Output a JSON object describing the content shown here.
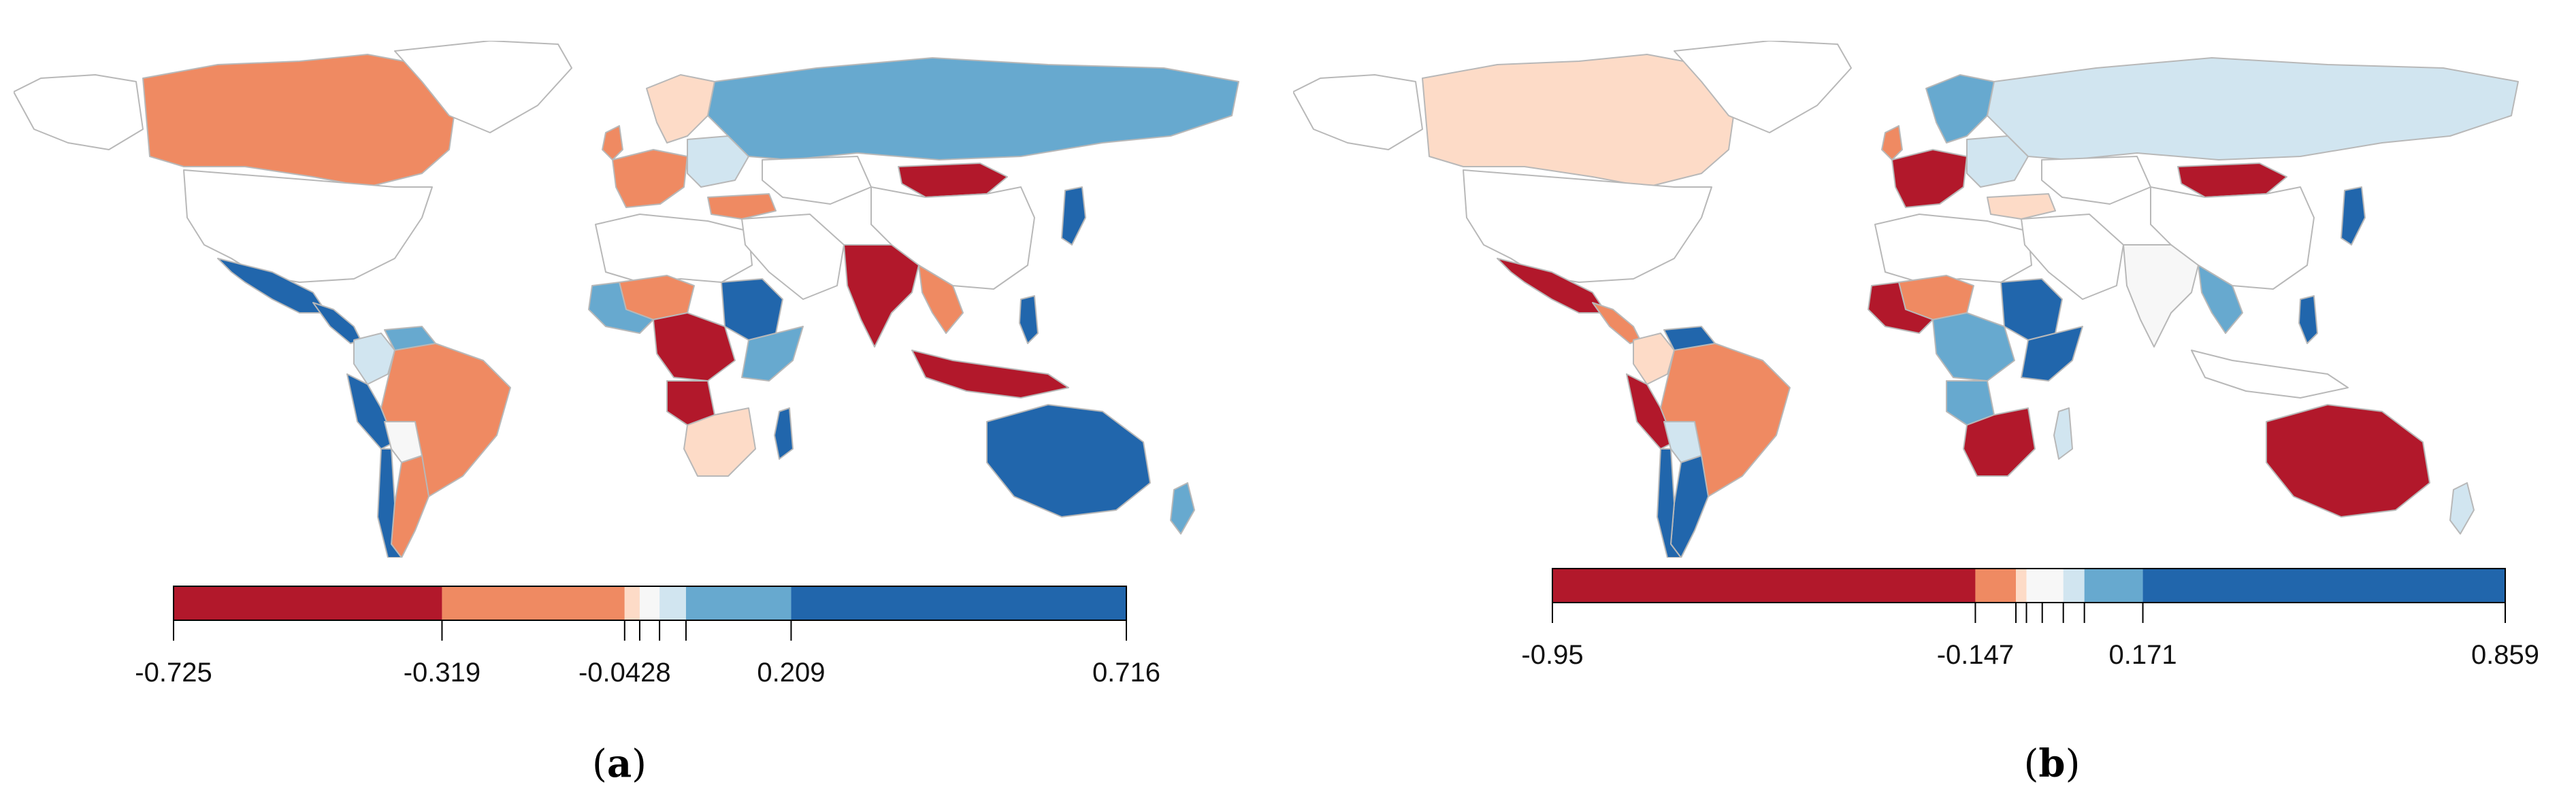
{
  "palette": {
    "dark_red": "#b2182b",
    "orange": "#ef8a62",
    "light_orange": "#fddbc7",
    "neutral": "#f7f7f7",
    "light_blue": "#d1e5f0",
    "mid_blue": "#67a9cf",
    "dark_blue": "#2166ac",
    "no_data": "#ffffff"
  },
  "panels": [
    {
      "id": "a",
      "caption_open": "(",
      "caption_letter": "a",
      "caption_close": ")",
      "colorbar": {
        "min": -0.725,
        "max": 0.716,
        "breaks": [
          -0.725,
          -0.319,
          -0.0428,
          -0.02,
          0.01,
          0.05,
          0.209,
          0.716
        ],
        "colors": [
          "#b2182b",
          "#ef8a62",
          "#fddbc7",
          "#f7f7f7",
          "#d1e5f0",
          "#67a9cf",
          "#2166ac"
        ],
        "labels": [
          {
            "value": -0.725,
            "text": "-0.725"
          },
          {
            "value": -0.319,
            "text": "-0.319"
          },
          {
            "value": -0.0428,
            "text": "-0.0428"
          },
          {
            "value": 0.209,
            "text": "0.209"
          },
          {
            "value": 0.716,
            "text": "0.716"
          }
        ]
      },
      "regions": [
        {
          "name": "canada",
          "color": "#ef8a62"
        },
        {
          "name": "usa",
          "color": "#ffffff"
        },
        {
          "name": "alaska",
          "color": "#ffffff"
        },
        {
          "name": "greenland",
          "color": "#ffffff"
        },
        {
          "name": "mexico",
          "color": "#2166ac"
        },
        {
          "name": "central-america",
          "color": "#2166ac"
        },
        {
          "name": "colombia",
          "color": "#d1e5f0"
        },
        {
          "name": "venezuela",
          "color": "#67a9cf"
        },
        {
          "name": "peru",
          "color": "#2166ac"
        },
        {
          "name": "brazil",
          "color": "#ef8a62"
        },
        {
          "name": "bolivia",
          "color": "#f7f7f7"
        },
        {
          "name": "argentina",
          "color": "#ef8a62"
        },
        {
          "name": "chile",
          "color": "#2166ac"
        },
        {
          "name": "scandinavia",
          "color": "#fddbc7"
        },
        {
          "name": "uk",
          "color": "#ef8a62"
        },
        {
          "name": "western-europe",
          "color": "#ef8a62"
        },
        {
          "name": "eastern-europe",
          "color": "#d1e5f0"
        },
        {
          "name": "turkey",
          "color": "#ef8a62"
        },
        {
          "name": "russia",
          "color": "#67a9cf"
        },
        {
          "name": "kazakhstan",
          "color": "#ffffff"
        },
        {
          "name": "mongolia",
          "color": "#b2182b"
        },
        {
          "name": "china",
          "color": "#ffffff"
        },
        {
          "name": "japan",
          "color": "#2166ac"
        },
        {
          "name": "india",
          "color": "#b2182b"
        },
        {
          "name": "southeast-asia",
          "color": "#ef8a62"
        },
        {
          "name": "indonesia",
          "color": "#b2182b"
        },
        {
          "name": "philippines",
          "color": "#2166ac"
        },
        {
          "name": "australia",
          "color": "#2166ac"
        },
        {
          "name": "new-zealand",
          "color": "#67a9cf"
        },
        {
          "name": "north-africa",
          "color": "#ffffff"
        },
        {
          "name": "mali",
          "color": "#ef8a62"
        },
        {
          "name": "west-africa",
          "color": "#67a9cf"
        },
        {
          "name": "sudan",
          "color": "#2166ac"
        },
        {
          "name": "central-africa",
          "color": "#b2182b"
        },
        {
          "name": "east-africa",
          "color": "#67a9cf"
        },
        {
          "name": "angola",
          "color": "#b2182b"
        },
        {
          "name": "southern-africa",
          "color": "#fddbc7"
        },
        {
          "name": "madagascar",
          "color": "#2166ac"
        },
        {
          "name": "middle-east",
          "color": "#ffffff"
        }
      ]
    },
    {
      "id": "b",
      "caption_open": "(",
      "caption_letter": "b",
      "caption_close": ")",
      "colorbar": {
        "min": -0.95,
        "max": 0.859,
        "breaks": [
          -0.95,
          -0.147,
          -0.07,
          -0.05,
          -0.02,
          0.02,
          0.06,
          0.171,
          0.859
        ],
        "colors": [
          "#b2182b",
          "#ef8a62",
          "#fddbc7",
          "#f7f7f7",
          "#f7f7f7",
          "#d1e5f0",
          "#67a9cf",
          "#2166ac"
        ],
        "labels": [
          {
            "value": -0.95,
            "text": "-0.95"
          },
          {
            "value": -0.147,
            "text": "-0.147"
          },
          {
            "value": 0.171,
            "text": "0.171"
          },
          {
            "value": 0.859,
            "text": "0.859"
          }
        ]
      },
      "regions": [
        {
          "name": "canada",
          "color": "#fddbc7"
        },
        {
          "name": "usa",
          "color": "#ffffff"
        },
        {
          "name": "alaska",
          "color": "#ffffff"
        },
        {
          "name": "greenland",
          "color": "#ffffff"
        },
        {
          "name": "mexico",
          "color": "#b2182b"
        },
        {
          "name": "central-america",
          "color": "#ef8a62"
        },
        {
          "name": "colombia",
          "color": "#fddbc7"
        },
        {
          "name": "venezuela",
          "color": "#2166ac"
        },
        {
          "name": "peru",
          "color": "#b2182b"
        },
        {
          "name": "brazil",
          "color": "#ef8a62"
        },
        {
          "name": "bolivia",
          "color": "#d1e5f0"
        },
        {
          "name": "argentina",
          "color": "#2166ac"
        },
        {
          "name": "chile",
          "color": "#2166ac"
        },
        {
          "name": "scandinavia",
          "color": "#67a9cf"
        },
        {
          "name": "uk",
          "color": "#ef8a62"
        },
        {
          "name": "western-europe",
          "color": "#b2182b"
        },
        {
          "name": "eastern-europe",
          "color": "#d1e5f0"
        },
        {
          "name": "turkey",
          "color": "#fddbc7"
        },
        {
          "name": "russia",
          "color": "#d1e5f0"
        },
        {
          "name": "kazakhstan",
          "color": "#ffffff"
        },
        {
          "name": "mongolia",
          "color": "#b2182b"
        },
        {
          "name": "china",
          "color": "#ffffff"
        },
        {
          "name": "japan",
          "color": "#2166ac"
        },
        {
          "name": "india",
          "color": "#f7f7f7"
        },
        {
          "name": "southeast-asia",
          "color": "#67a9cf"
        },
        {
          "name": "indonesia",
          "color": "#ffffff"
        },
        {
          "name": "philippines",
          "color": "#2166ac"
        },
        {
          "name": "australia",
          "color": "#b2182b"
        },
        {
          "name": "new-zealand",
          "color": "#d1e5f0"
        },
        {
          "name": "north-africa",
          "color": "#ffffff"
        },
        {
          "name": "mali",
          "color": "#ef8a62"
        },
        {
          "name": "west-africa",
          "color": "#b2182b"
        },
        {
          "name": "sudan",
          "color": "#2166ac"
        },
        {
          "name": "central-africa",
          "color": "#67a9cf"
        },
        {
          "name": "east-africa",
          "color": "#2166ac"
        },
        {
          "name": "angola",
          "color": "#67a9cf"
        },
        {
          "name": "southern-africa",
          "color": "#b2182b"
        },
        {
          "name": "madagascar",
          "color": "#d1e5f0"
        },
        {
          "name": "middle-east",
          "color": "#ffffff"
        }
      ]
    }
  ]
}
